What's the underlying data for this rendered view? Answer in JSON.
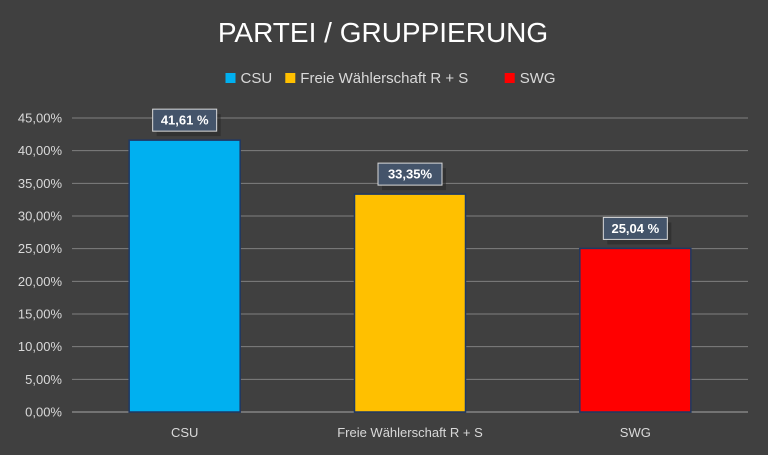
{
  "chart_data": {
    "type": "bar",
    "title": "PARTEI / GRUPPIERUNG",
    "categories": [
      "CSU",
      "Freie Wählerschaft R + S",
      "SWG"
    ],
    "values": [
      41.61,
      33.35,
      25.04
    ],
    "data_labels": [
      "41,61 %",
      "33,35%",
      "25,04 %"
    ],
    "colors": [
      "#00b0f0",
      "#ffc000",
      "#ff0000"
    ],
    "legend": {
      "position": "top",
      "entries": [
        "CSU",
        "Freie Wählerschaft R + S",
        "SWG"
      ]
    },
    "y_ticks": [
      "0,00%",
      "5,00%",
      "10,00%",
      "15,00%",
      "20,00%",
      "25,00%",
      "30,00%",
      "35,00%",
      "40,00%",
      "45,00%"
    ],
    "ylim": [
      0,
      45
    ],
    "grid": true,
    "background": "#404040"
  }
}
